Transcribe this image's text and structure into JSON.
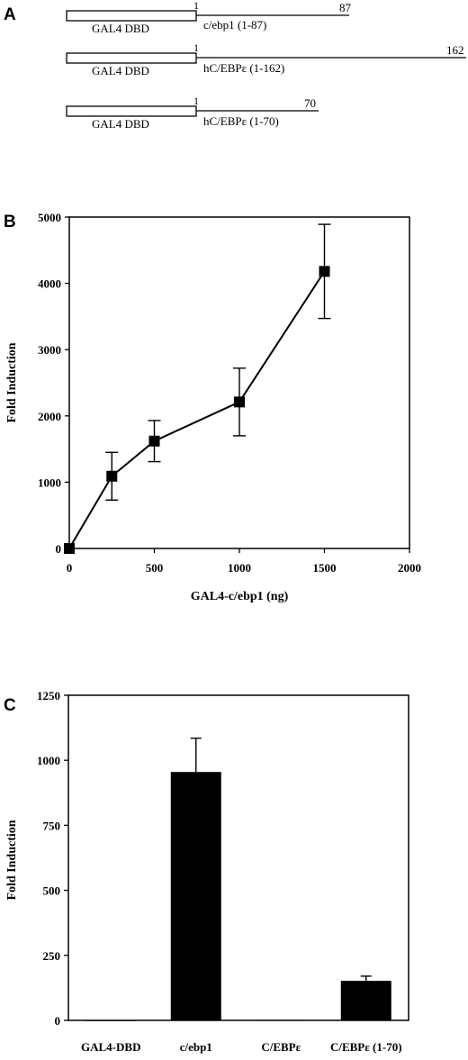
{
  "panel_a": {
    "letter": "A",
    "constructs": [
      {
        "box_label": "GAL4 DBD",
        "start_label": "1",
        "end_label": "87",
        "name": "c/ebp1  (1-87)",
        "length": 87
      },
      {
        "box_label": "GAL4 DBD",
        "start_label": "1",
        "end_label": "162",
        "name": "hC/EBPε (1-162)",
        "length": 162
      },
      {
        "box_label": "GAL4 DBD",
        "start_label": "1",
        "end_label": "70",
        "name": "hC/EBPε  (1-70)",
        "length": 70
      }
    ]
  },
  "chart_data": [
    {
      "panel": "B",
      "type": "line",
      "xlabel": "GAL4-c/ebp1 (ng)",
      "ylabel": "Fold  Induction",
      "xlim": [
        0,
        2000
      ],
      "ylim": [
        0,
        5000
      ],
      "x_ticks": [
        "0",
        "500",
        "1000",
        "1500",
        "2000"
      ],
      "y_ticks": [
        "0",
        "1000",
        "2000",
        "3000",
        "4000",
        "5000"
      ],
      "grid": false,
      "marker": "square",
      "points": [
        {
          "x": 0,
          "y": 0,
          "err": 0
        },
        {
          "x": 250,
          "y": 1090,
          "err": 360
        },
        {
          "x": 500,
          "y": 1620,
          "err": 310
        },
        {
          "x": 1000,
          "y": 2210,
          "err": 510
        },
        {
          "x": 1500,
          "y": 4180,
          "err": 710
        }
      ]
    },
    {
      "panel": "C",
      "type": "bar",
      "xlabel": "",
      "ylabel": "Fold  Induction",
      "ylim": [
        0,
        1250
      ],
      "y_ticks": [
        "0",
        "250",
        "500",
        "750",
        "1000",
        "1250"
      ],
      "grid": false,
      "categories": [
        "GAL4-DBD",
        "c/ebp1",
        "C/EBPε",
        "C/EBPε (1-70)"
      ],
      "values": [
        1,
        955,
        2,
        152
      ],
      "errors": [
        0,
        130,
        0,
        18
      ]
    }
  ]
}
